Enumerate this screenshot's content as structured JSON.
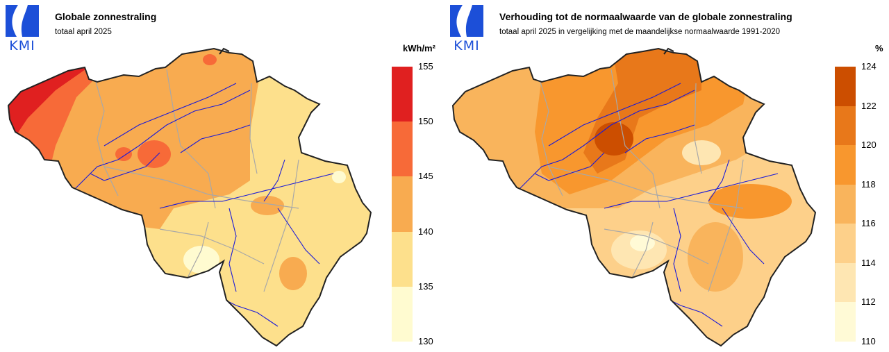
{
  "left_panel": {
    "logo_text": "KMI",
    "title": "Globale zonnestraling",
    "subtitle": "totaal april 2025",
    "unit": "kWh/m²",
    "legend": {
      "ticks": [
        "155",
        "150",
        "145",
        "140",
        "135",
        "130"
      ],
      "classes": [
        {
          "range": "150-155",
          "color": "#e02020"
        },
        {
          "range": "145-150",
          "color": "#f76a38"
        },
        {
          "range": "140-145",
          "color": "#f8ab50"
        },
        {
          "range": "135-140",
          "color": "#fde08c"
        },
        {
          "range": "130-135",
          "color": "#fffbd0"
        }
      ]
    }
  },
  "right_panel": {
    "logo_text": "KMI",
    "title": "Verhouding tot de normaalwaarde van de globale zonnestraling",
    "subtitle": "totaal april 2025 in vergelijking met de maandelijkse normaalwaarde 1991-2020",
    "unit": "%",
    "legend": {
      "ticks": [
        "124",
        "122",
        "120",
        "118",
        "116",
        "114",
        "112",
        "110"
      ],
      "classes": [
        {
          "range": "122-124",
          "color": "#cc4e00"
        },
        {
          "range": "120-122",
          "color": "#e8781a"
        },
        {
          "range": "118-120",
          "color": "#f8972e"
        },
        {
          "range": "116-118",
          "color": "#f9b45c"
        },
        {
          "range": "114-116",
          "color": "#fdd08a"
        },
        {
          "range": "112-114",
          "color": "#fee6b2"
        },
        {
          "range": "110-112",
          "color": "#fffad6"
        }
      ]
    }
  },
  "colors": {
    "border": "#222222",
    "rivers": "#1a1ad8",
    "provinces": "#a8a8a8",
    "logo_blue": "#1c4fd8"
  }
}
